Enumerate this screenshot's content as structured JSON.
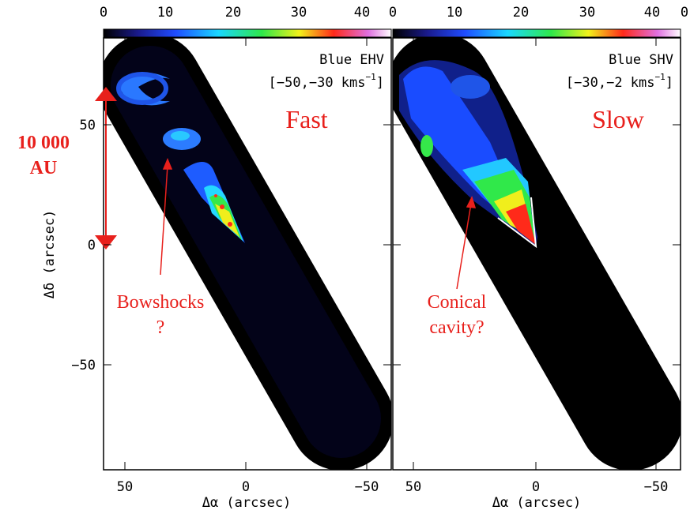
{
  "colorbars": [
    {
      "ticks": [
        "0",
        "10",
        "20",
        "30",
        "40"
      ]
    },
    {
      "ticks": [
        "0",
        "10",
        "20",
        "30",
        "40",
        "0"
      ]
    }
  ],
  "panels": [
    {
      "title": "Blue EHV",
      "range": "[−50,−30 kms",
      "range_sup": "−1",
      "range_end": "]",
      "label": "Fast",
      "x_ticks": [
        "50",
        "0",
        "−50"
      ],
      "x_label": "Δα (arcsec)"
    },
    {
      "title": "Blue SHV",
      "range": "[−30,−2 kms",
      "range_sup": "−1",
      "range_end": "]",
      "label": "Slow",
      "x_ticks": [
        "50",
        "0",
        "−50"
      ],
      "x_label": "Δα (arcsec)"
    }
  ],
  "y_axis": {
    "ticks": [
      "50",
      "0",
      "−50"
    ],
    "label": "Δδ (arcsec)"
  },
  "annotations": {
    "scale": [
      "10 000",
      "AU"
    ],
    "bowshocks": [
      "Bowshocks",
      "?"
    ],
    "cavity": [
      "Conical",
      "cavity?"
    ]
  }
}
